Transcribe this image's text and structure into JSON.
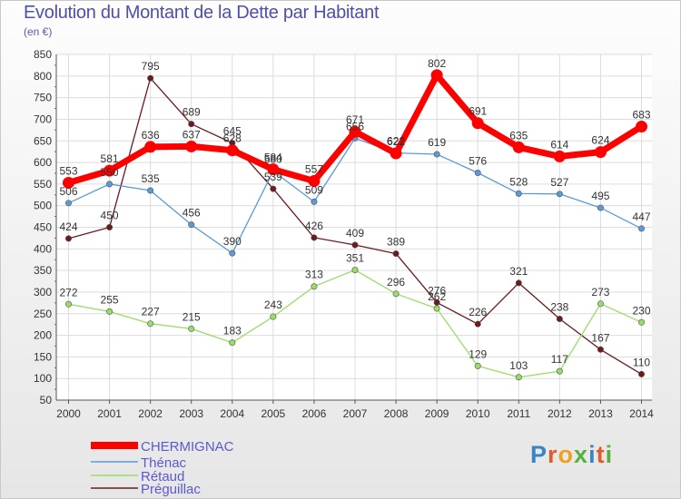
{
  "chart_data": {
    "type": "line",
    "title": "Evolution du Montant de la Dette par Habitant",
    "subtitle": "(en €)",
    "x": [
      "2000",
      "2001",
      "2002",
      "2003",
      "2004",
      "2005",
      "2006",
      "2007",
      "2008",
      "2009",
      "2010",
      "2011",
      "2012",
      "2013",
      "2014"
    ],
    "ylim": [
      50,
      850
    ],
    "yticks": [
      50,
      100,
      150,
      200,
      250,
      300,
      350,
      400,
      450,
      500,
      550,
      600,
      650,
      700,
      750,
      800,
      850
    ],
    "grid": true,
    "legend_position": "bottom-left",
    "series": [
      {
        "name": "Préguillac",
        "color": "#6b1a1e",
        "width": 1.3,
        "values": [
          424,
          450,
          795,
          689,
          645,
          539,
          426,
          409,
          389,
          276,
          226,
          321,
          238,
          167,
          110
        ]
      },
      {
        "name": "Rétaud",
        "color": "#99dd66",
        "width": 1.3,
        "values": [
          272,
          255,
          227,
          215,
          183,
          243,
          313,
          351,
          296,
          262,
          129,
          103,
          117,
          273,
          230
        ]
      },
      {
        "name": "Thénac",
        "color": "#5b9bd5",
        "width": 1.3,
        "values": [
          506,
          550,
          535,
          456,
          390,
          580,
          509,
          656,
          622,
          619,
          576,
          528,
          527,
          495,
          447
        ]
      },
      {
        "name": "CHERMIGNAC",
        "color": "#ff0000",
        "width": 7,
        "values": [
          553,
          581,
          636,
          637,
          628,
          584,
          557,
          671,
          621,
          802,
          691,
          635,
          614,
          624,
          683
        ]
      }
    ],
    "legend": [
      "CHERMIGNAC",
      "Thénac",
      "Rétaud",
      "Préguillac"
    ]
  },
  "logo": [
    "P",
    "r",
    "o",
    "x",
    "i",
    "t",
    "i"
  ]
}
